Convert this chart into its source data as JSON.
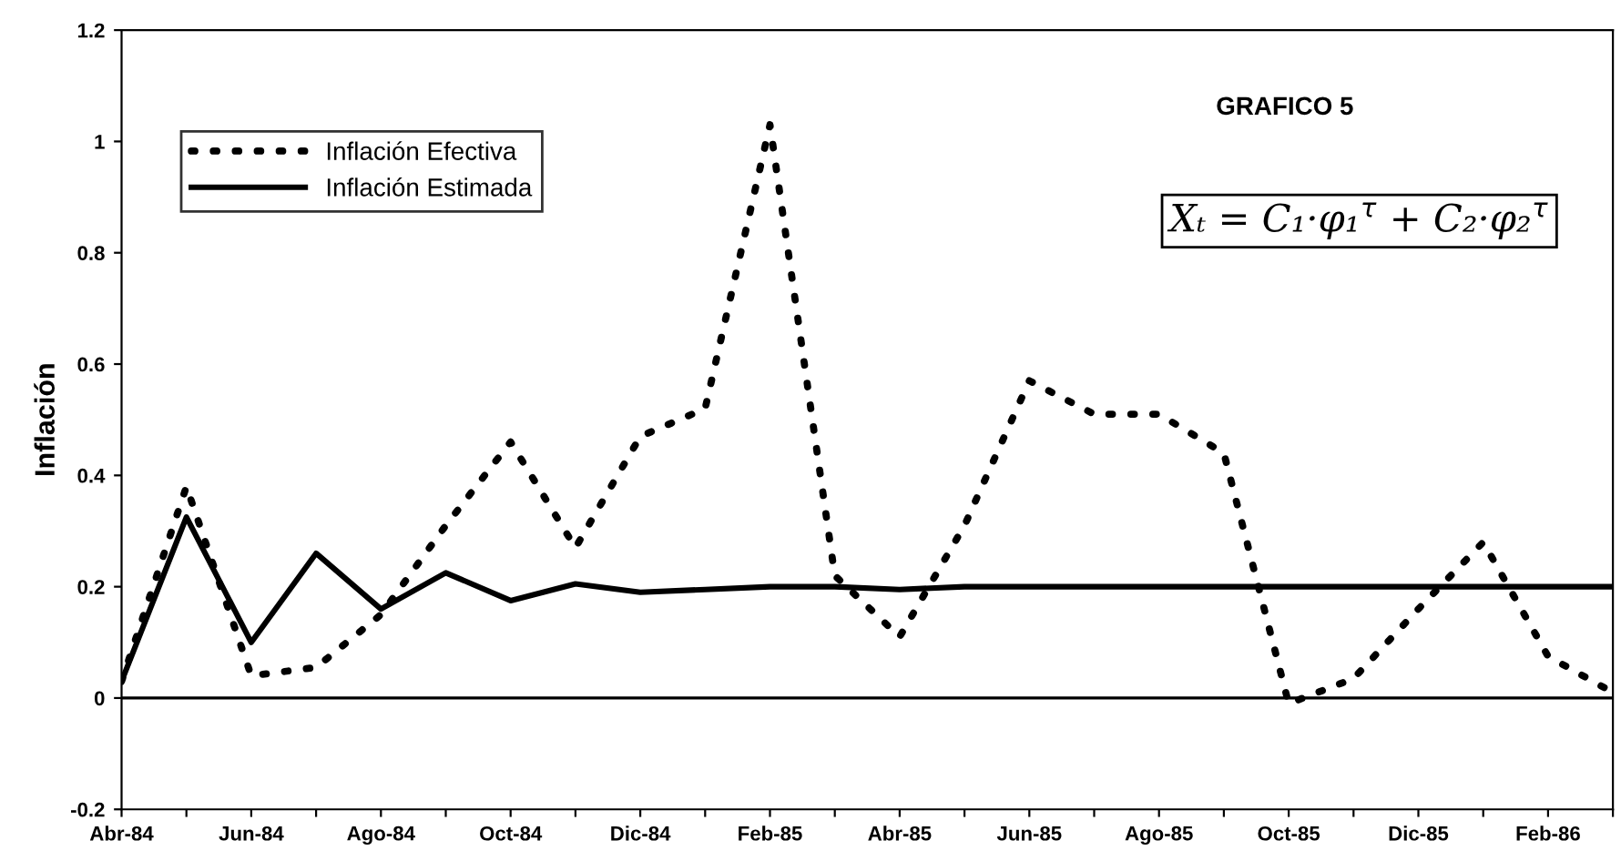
{
  "chart_data": {
    "type": "line",
    "title": "GRAFICO 5",
    "ylabel": "Inflación",
    "annotations": [
      "Xₜ = C₁·φ₁$^{τ}$ + C₂·φ₂$^{τ}$"
    ],
    "categories": [
      "Abr-84",
      null,
      "Jun-84",
      null,
      "Ago-84",
      null,
      "Oct-84",
      null,
      "Dic-84",
      null,
      "Feb-85",
      null,
      "Abr-85",
      null,
      "Jun-85",
      null,
      "Ago-85",
      null,
      "Oct-85",
      null,
      "Dic-85",
      null,
      "Feb-86",
      null
    ],
    "series": [
      {
        "name": "Inflación Efectiva",
        "color": "#000000",
        "line_style": "dotted",
        "values": [
          0.03,
          0.38,
          0.04,
          0.055,
          0.15,
          0.31,
          0.46,
          0.27,
          0.47,
          0.52,
          1.03,
          0.22,
          0.11,
          0.31,
          0.57,
          0.51,
          0.51,
          0.44,
          -0.01,
          0.035,
          0.16,
          0.28,
          0.075,
          0.01
        ]
      },
      {
        "name": "Inflación Estimada",
        "color": "#000000",
        "line_style": "solid",
        "values": [
          0.03,
          0.325,
          0.1,
          0.26,
          0.16,
          0.225,
          0.175,
          0.205,
          0.19,
          0.195,
          0.2,
          0.2,
          0.195,
          0.2,
          0.2,
          0.2,
          0.2,
          0.2,
          0.2,
          0.2,
          0.2,
          0.2,
          0.2,
          0.2
        ]
      }
    ],
    "ylim": [
      -0.2,
      1.2
    ],
    "yticks": [
      -0.2,
      0,
      0.2,
      0.4,
      0.6,
      0.8,
      1,
      1.2
    ],
    "ref_lines": [
      {
        "axis": "y",
        "value": 0,
        "label": null
      }
    ],
    "grid": false,
    "legend": "top left",
    "marker": "none"
  }
}
